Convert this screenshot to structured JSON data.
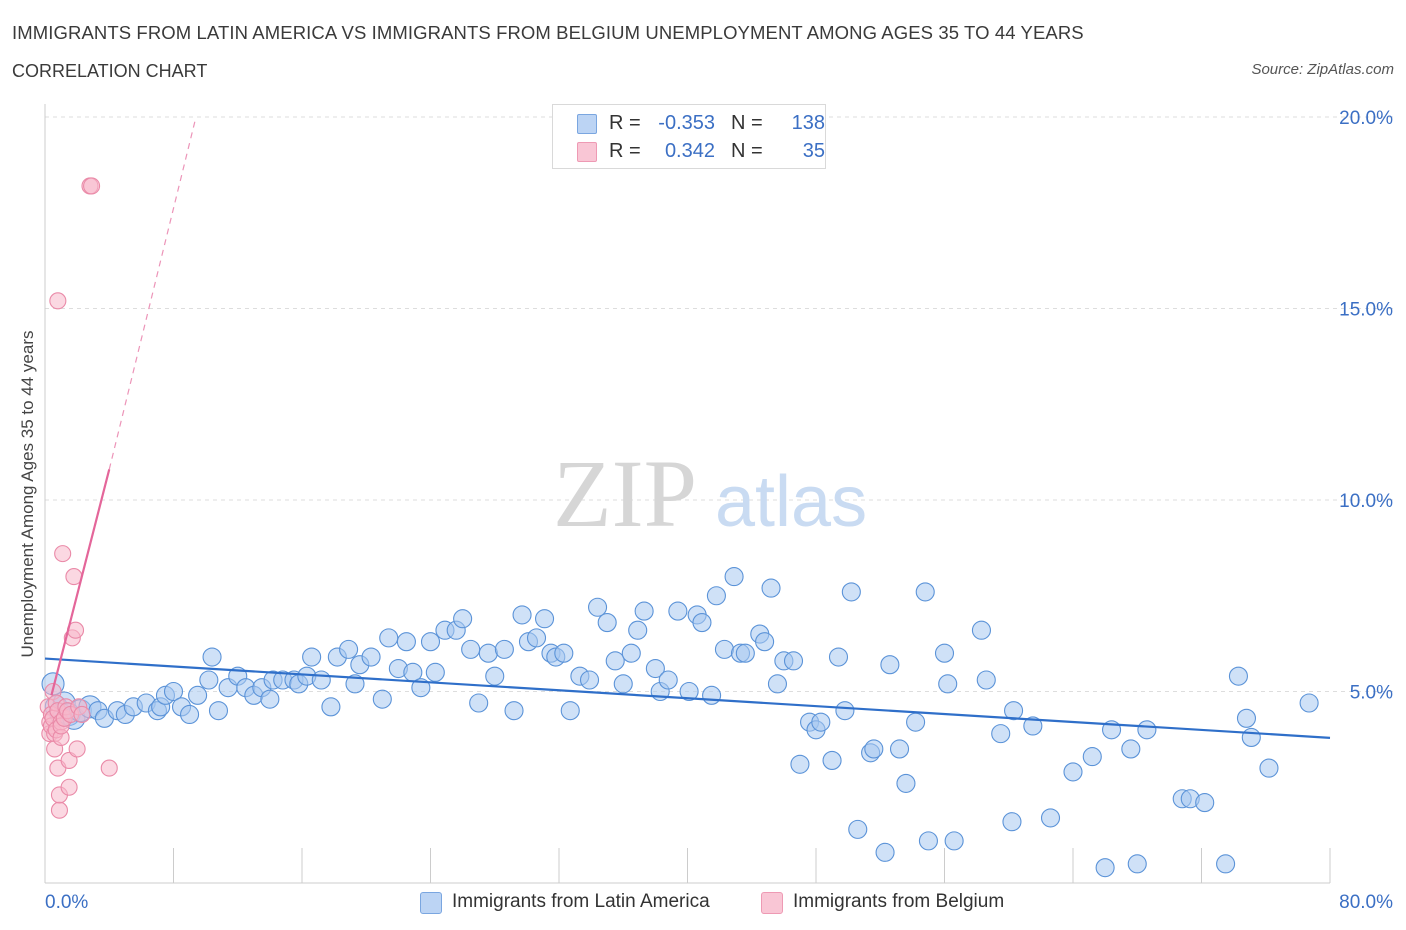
{
  "header": {
    "title": "IMMIGRANTS FROM LATIN AMERICA VS IMMIGRANTS FROM BELGIUM UNEMPLOYMENT AMONG AGES 35 TO 44 YEARS",
    "subtitle": "CORRELATION CHART",
    "source": "Source: ZipAtlas.com"
  },
  "legend": {
    "rows": [
      {
        "r_label": "R =",
        "r_value": "-0.353",
        "n_label": "N =",
        "n_value": "138"
      },
      {
        "r_label": "R =",
        "r_value": "0.342",
        "n_label": "N =",
        "n_value": "35"
      }
    ]
  },
  "watermark": {
    "zip": "ZIP",
    "atlas": "atlas"
  },
  "colors": {
    "blue_fill": "#a8c8f0",
    "blue_stroke": "#5b93d8",
    "blue_line": "#2f6fc9",
    "pink_fill": "#f7b8cb",
    "pink_stroke": "#ea8aa8",
    "pink_line": "#e4669a",
    "tick_label": "#3b6fc4",
    "grid": "#dddddd"
  },
  "chart_data": {
    "type": "scatter",
    "title": "IMMIGRANTS FROM LATIN AMERICA VS IMMIGRANTS FROM BELGIUM UNEMPLOYMENT AMONG AGES 35 TO 44 YEARS",
    "xlabel": "",
    "ylabel": "Unemployment Among Ages 35 to 44 years",
    "xlim": [
      0,
      80
    ],
    "ylim": [
      0,
      20
    ],
    "x_tick_labels": [
      "0.0%",
      "80.0%"
    ],
    "y_tick_labels": [
      "5.0%",
      "10.0%",
      "15.0%",
      "20.0%"
    ],
    "y_ticks": [
      5,
      10,
      15,
      20
    ],
    "grid": true,
    "legend_placement": "bottom-center",
    "series": [
      {
        "name": "Immigrants from Latin America",
        "color": "#a8c8f0",
        "points": [
          [
            0.5,
            5.2
          ],
          [
            0.7,
            4.6
          ],
          [
            1.0,
            4.4
          ],
          [
            1.2,
            4.7
          ],
          [
            1.5,
            4.4
          ],
          [
            1.8,
            4.3
          ],
          [
            2.2,
            4.5
          ],
          [
            2.8,
            4.6
          ],
          [
            3.3,
            4.5
          ],
          [
            3.7,
            4.3
          ],
          [
            4.5,
            4.5
          ],
          [
            5.0,
            4.4
          ],
          [
            5.5,
            4.6
          ],
          [
            6.3,
            4.7
          ],
          [
            7.0,
            4.5
          ],
          [
            7.2,
            4.6
          ],
          [
            7.5,
            4.9
          ],
          [
            8.0,
            5.0
          ],
          [
            8.5,
            4.6
          ],
          [
            9.0,
            4.4
          ],
          [
            9.5,
            4.9
          ],
          [
            10.2,
            5.3
          ],
          [
            10.4,
            5.9
          ],
          [
            10.8,
            4.5
          ],
          [
            11.4,
            5.1
          ],
          [
            12.0,
            5.4
          ],
          [
            12.5,
            5.1
          ],
          [
            13.0,
            4.9
          ],
          [
            13.5,
            5.1
          ],
          [
            14.0,
            4.8
          ],
          [
            14.2,
            5.3
          ],
          [
            14.8,
            5.3
          ],
          [
            15.5,
            5.3
          ],
          [
            15.8,
            5.2
          ],
          [
            16.3,
            5.4
          ],
          [
            16.6,
            5.9
          ],
          [
            17.2,
            5.3
          ],
          [
            17.8,
            4.6
          ],
          [
            18.2,
            5.9
          ],
          [
            18.9,
            6.1
          ],
          [
            19.3,
            5.2
          ],
          [
            19.6,
            5.7
          ],
          [
            20.3,
            5.9
          ],
          [
            21.0,
            4.8
          ],
          [
            21.4,
            6.4
          ],
          [
            22.0,
            5.6
          ],
          [
            22.5,
            6.3
          ],
          [
            22.9,
            5.5
          ],
          [
            23.4,
            5.1
          ],
          [
            24.0,
            6.3
          ],
          [
            24.3,
            5.5
          ],
          [
            24.9,
            6.6
          ],
          [
            25.6,
            6.6
          ],
          [
            26.0,
            6.9
          ],
          [
            26.5,
            6.1
          ],
          [
            27.0,
            4.7
          ],
          [
            27.6,
            6.0
          ],
          [
            28.0,
            5.4
          ],
          [
            28.6,
            6.1
          ],
          [
            29.2,
            4.5
          ],
          [
            29.7,
            7.0
          ],
          [
            30.1,
            6.3
          ],
          [
            30.6,
            6.4
          ],
          [
            31.1,
            6.9
          ],
          [
            31.5,
            6.0
          ],
          [
            31.8,
            5.9
          ],
          [
            32.3,
            6.0
          ],
          [
            32.7,
            4.5
          ],
          [
            33.3,
            5.4
          ],
          [
            33.9,
            5.3
          ],
          [
            34.4,
            7.2
          ],
          [
            35.0,
            6.8
          ],
          [
            35.5,
            5.8
          ],
          [
            36.0,
            5.2
          ],
          [
            36.5,
            6.0
          ],
          [
            36.9,
            6.6
          ],
          [
            37.3,
            7.1
          ],
          [
            38.0,
            5.6
          ],
          [
            38.3,
            5.0
          ],
          [
            38.8,
            5.3
          ],
          [
            39.4,
            7.1
          ],
          [
            40.1,
            5.0
          ],
          [
            40.6,
            7.0
          ],
          [
            40.9,
            6.8
          ],
          [
            41.5,
            4.9
          ],
          [
            41.8,
            7.5
          ],
          [
            42.3,
            6.1
          ],
          [
            42.9,
            8.0
          ],
          [
            43.3,
            6.0
          ],
          [
            43.6,
            6.0
          ],
          [
            44.5,
            6.5
          ],
          [
            44.8,
            6.3
          ],
          [
            45.2,
            7.7
          ],
          [
            45.6,
            5.2
          ],
          [
            46.0,
            5.8
          ],
          [
            46.6,
            5.8
          ],
          [
            47.0,
            3.1
          ],
          [
            47.6,
            4.2
          ],
          [
            48.0,
            4.0
          ],
          [
            48.3,
            4.2
          ],
          [
            49.0,
            3.2
          ],
          [
            49.4,
            5.9
          ],
          [
            49.8,
            4.5
          ],
          [
            50.2,
            7.6
          ],
          [
            50.6,
            1.4
          ],
          [
            51.4,
            3.4
          ],
          [
            51.6,
            3.5
          ],
          [
            52.3,
            0.8
          ],
          [
            52.6,
            5.7
          ],
          [
            53.2,
            3.5
          ],
          [
            53.6,
            2.6
          ],
          [
            54.2,
            4.2
          ],
          [
            54.8,
            7.6
          ],
          [
            55.0,
            1.1
          ],
          [
            56.0,
            6.0
          ],
          [
            56.2,
            5.2
          ],
          [
            56.6,
            1.1
          ],
          [
            58.3,
            6.6
          ],
          [
            58.6,
            5.3
          ],
          [
            59.5,
            3.9
          ],
          [
            60.2,
            1.6
          ],
          [
            60.3,
            4.5
          ],
          [
            61.5,
            4.1
          ],
          [
            62.6,
            1.7
          ],
          [
            64.0,
            2.9
          ],
          [
            65.2,
            3.3
          ],
          [
            66.0,
            0.4
          ],
          [
            66.4,
            4.0
          ],
          [
            67.6,
            3.5
          ],
          [
            68.0,
            0.5
          ],
          [
            68.6,
            4.0
          ],
          [
            70.8,
            2.2
          ],
          [
            71.3,
            2.2
          ],
          [
            72.2,
            2.1
          ],
          [
            73.5,
            0.5
          ],
          [
            74.3,
            5.4
          ],
          [
            74.8,
            4.3
          ],
          [
            75.1,
            3.8
          ],
          [
            76.2,
            3.0
          ],
          [
            78.7,
            4.7
          ]
        ]
      },
      {
        "name": "Immigrants from Belgium",
        "color": "#f7b8cb",
        "points": [
          [
            0.2,
            4.6
          ],
          [
            0.3,
            4.2
          ],
          [
            0.3,
            3.9
          ],
          [
            0.4,
            4.4
          ],
          [
            0.4,
            4.1
          ],
          [
            0.5,
            5.0
          ],
          [
            0.5,
            4.3
          ],
          [
            0.6,
            3.9
          ],
          [
            0.6,
            3.5
          ],
          [
            0.7,
            4.7
          ],
          [
            0.7,
            4.0
          ],
          [
            0.8,
            3.0
          ],
          [
            0.8,
            4.5
          ],
          [
            0.9,
            1.9
          ],
          [
            0.9,
            2.3
          ],
          [
            1.0,
            4.2
          ],
          [
            1.0,
            3.8
          ],
          [
            1.0,
            4.1
          ],
          [
            1.1,
            8.6
          ],
          [
            1.2,
            4.3
          ],
          [
            1.3,
            4.6
          ],
          [
            1.4,
            4.5
          ],
          [
            1.5,
            3.2
          ],
          [
            1.5,
            2.5
          ],
          [
            1.6,
            4.4
          ],
          [
            1.7,
            6.4
          ],
          [
            1.8,
            8.0
          ],
          [
            1.9,
            6.6
          ],
          [
            2.0,
            3.5
          ],
          [
            2.1,
            4.6
          ],
          [
            2.3,
            4.4
          ],
          [
            2.8,
            18.2
          ],
          [
            2.9,
            18.2
          ],
          [
            4.0,
            3.0
          ],
          [
            0.8,
            15.2
          ]
        ]
      }
    ],
    "trend_lines": [
      {
        "series": "Immigrants from Latin America",
        "x": [
          0,
          80
        ],
        "y": [
          5.86,
          3.79
        ]
      },
      {
        "series": "Immigrants from Belgium",
        "x": [
          0.4,
          4.0
        ],
        "y": [
          4.9,
          10.8
        ],
        "dashed_extension_to": [
          9.4,
          20.0
        ]
      }
    ]
  }
}
